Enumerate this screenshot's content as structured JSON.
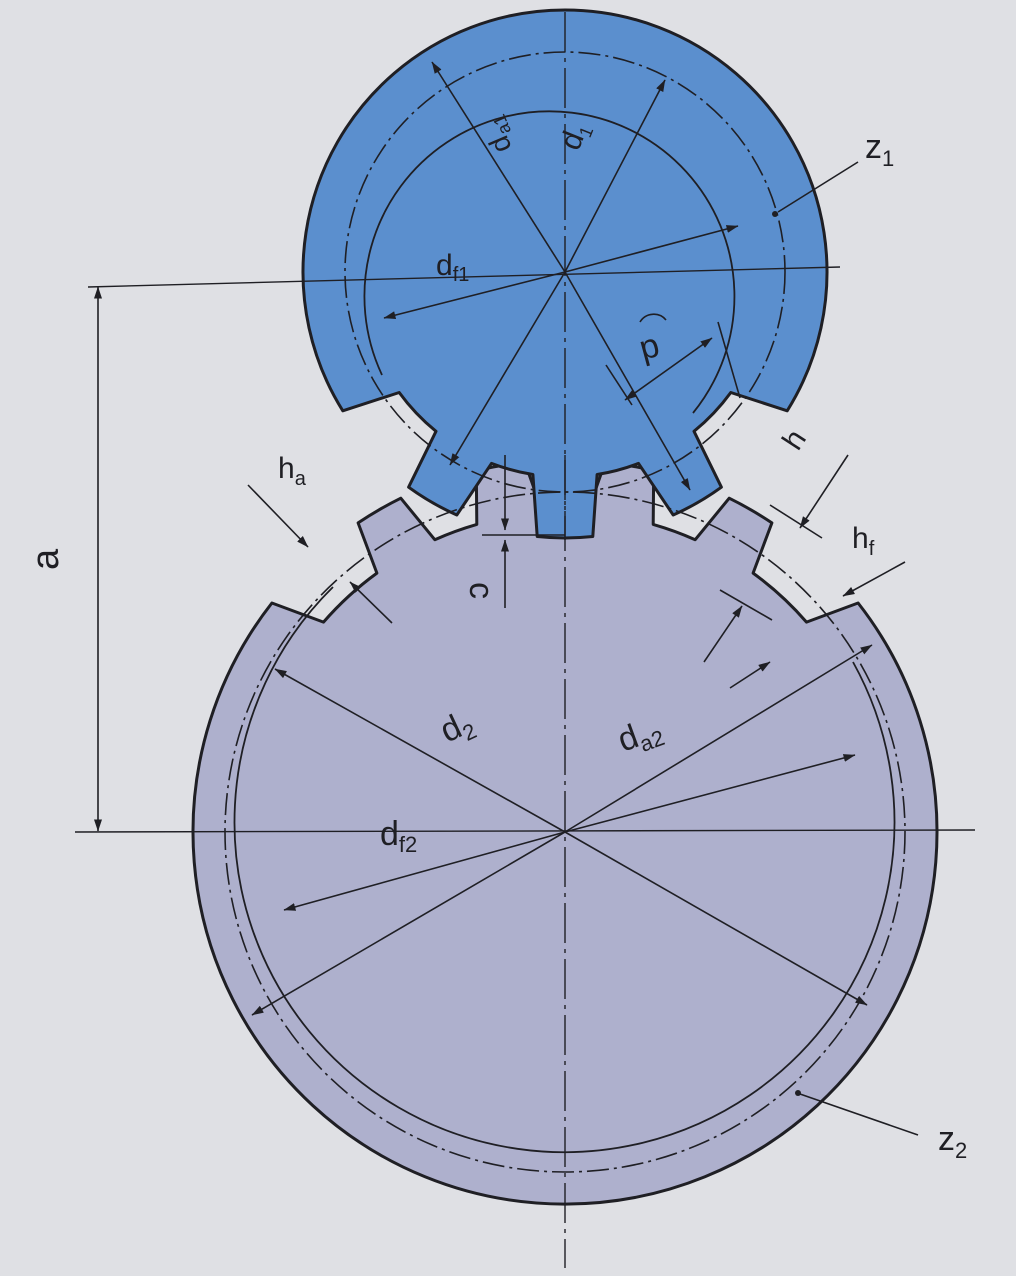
{
  "colors": {
    "paper": "#dfe0e4",
    "gear1_fill": "#5b8fce",
    "gear2_fill": "#aeb0cd",
    "ink": "#1f1f24"
  },
  "labels": {
    "z1": "z",
    "z1_sub": "1",
    "z2": "z",
    "z2_sub": "2",
    "d1": "d",
    "d1_sub": "1",
    "da1": "d",
    "da1_sub": "a1",
    "df1": "d",
    "df1_sub": "f1",
    "p": "p",
    "h": "h",
    "ha": "h",
    "ha_sub": "a",
    "hf": "h",
    "hf_sub": "f",
    "c": "c",
    "a": "a",
    "d2": "d",
    "d2_sub": "2",
    "da2": "d",
    "da2_sub": "a2",
    "df2": "d",
    "df2_sub": "f2"
  }
}
